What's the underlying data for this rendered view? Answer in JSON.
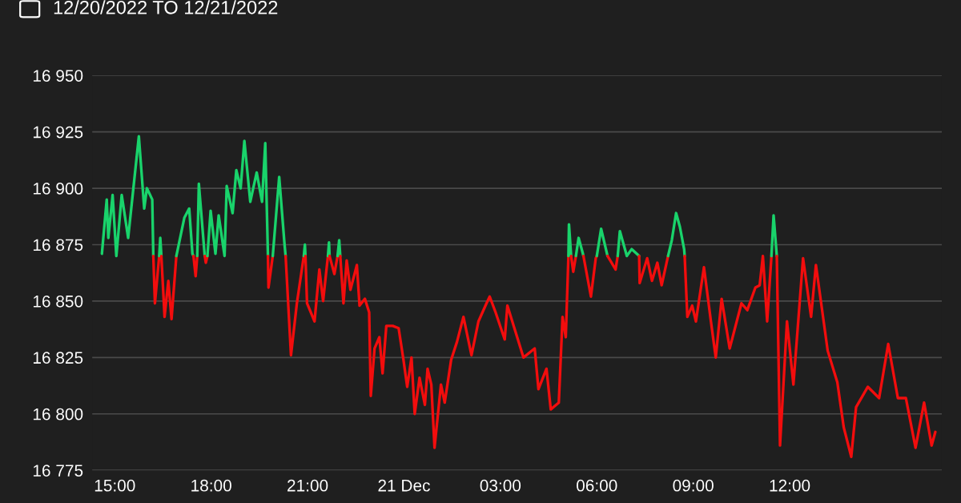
{
  "chart_data": {
    "type": "line",
    "title": "12/20/2022 TO 12/21/2022",
    "xlim": [
      "2022-12-20T14:18",
      "2022-12-21T16:44"
    ],
    "ylim": [
      16775,
      16950
    ],
    "xticks": [
      {
        "value": "2022-12-20T15:00",
        "label": "15:00"
      },
      {
        "value": "2022-12-20T18:00",
        "label": "18:00"
      },
      {
        "value": "2022-12-20T21:00",
        "label": "21:00"
      },
      {
        "value": "2022-12-21T00:00",
        "label": "21 Dec"
      },
      {
        "value": "2022-12-21T03:00",
        "label": "03:00"
      },
      {
        "value": "2022-12-21T06:00",
        "label": "06:00"
      },
      {
        "value": "2022-12-21T09:00",
        "label": "09:00"
      },
      {
        "value": "2022-12-21T12:00",
        "label": "12:00"
      }
    ],
    "yticks": [
      {
        "value": 16775,
        "label": "16 775"
      },
      {
        "value": 16800,
        "label": "16 800"
      },
      {
        "value": 16825,
        "label": "16 825"
      },
      {
        "value": 16850,
        "label": "16 850"
      },
      {
        "value": 16875,
        "label": "16 875"
      },
      {
        "value": 16900,
        "label": "16 900"
      },
      {
        "value": 16925,
        "label": "16 925"
      },
      {
        "value": 16950,
        "label": "16 950"
      }
    ],
    "grid": "y",
    "marker": "none",
    "line_style": "solid",
    "series": [
      {
        "color": "#19d36b",
        "x": [
          "2022-12-20T14:36",
          "2022-12-20T14:45",
          "2022-12-20T14:48",
          "2022-12-20T14:56",
          "2022-12-20T15:03",
          "2022-12-20T15:13",
          "2022-12-20T15:25",
          "2022-12-20T15:45",
          "2022-12-20T15:55",
          "2022-12-20T16:00",
          "2022-12-20T16:10",
          "2022-12-20T16:12"
        ],
        "values": [
          16871,
          16895,
          16878,
          16897,
          16870,
          16897,
          16878,
          16923,
          16891,
          16900,
          16895,
          16870
        ]
      },
      {
        "color": "#f20d0d",
        "x": [
          "2022-12-20T16:12",
          "2022-12-20T16:15",
          "2022-12-20T16:23"
        ],
        "values": [
          16870,
          16849,
          16870
        ]
      },
      {
        "color": "#19d36b",
        "x": [
          "2022-12-20T16:23",
          "2022-12-20T16:25",
          "2022-12-20T16:27"
        ],
        "values": [
          16870,
          16878,
          16870
        ]
      },
      {
        "color": "#f20d0d",
        "x": [
          "2022-12-20T16:27",
          "2022-12-20T16:33",
          "2022-12-20T16:40",
          "2022-12-20T16:46",
          "2022-12-20T16:55"
        ],
        "values": [
          16870,
          16843,
          16859,
          16842,
          16870
        ]
      },
      {
        "color": "#19d36b",
        "x": [
          "2022-12-20T16:55",
          "2022-12-20T17:10",
          "2022-12-20T17:19",
          "2022-12-20T17:25",
          "2022-12-20T17:27"
        ],
        "values": [
          16870,
          16887,
          16891,
          16871,
          16870
        ]
      },
      {
        "color": "#f20d0d",
        "x": [
          "2022-12-20T17:27",
          "2022-12-20T17:31",
          "2022-12-20T17:34"
        ],
        "values": [
          16870,
          16861,
          16870
        ]
      },
      {
        "color": "#19d36b",
        "x": [
          "2022-12-20T17:34",
          "2022-12-20T17:37",
          "2022-12-20T17:48"
        ],
        "values": [
          16870,
          16902,
          16870
        ]
      },
      {
        "color": "#f20d0d",
        "x": [
          "2022-12-20T17:48",
          "2022-12-20T17:50",
          "2022-12-20T17:53"
        ],
        "values": [
          16870,
          16867,
          16870
        ]
      },
      {
        "color": "#19d36b",
        "x": [
          "2022-12-20T17:53",
          "2022-12-20T17:59",
          "2022-12-20T18:08",
          "2022-12-20T18:14",
          "2022-12-20T18:25",
          "2022-12-20T18:29",
          "2022-12-20T18:40",
          "2022-12-20T18:47",
          "2022-12-20T18:55",
          "2022-12-20T19:02",
          "2022-12-20T19:13",
          "2022-12-20T19:25",
          "2022-12-20T19:35",
          "2022-12-20T19:41",
          "2022-12-20T19:46"
        ],
        "values": [
          16870,
          16890,
          16871,
          16888,
          16870,
          16901,
          16889,
          16908,
          16900,
          16921,
          16894,
          16907,
          16894,
          16920,
          16870
        ]
      },
      {
        "color": "#f20d0d",
        "x": [
          "2022-12-20T19:46",
          "2022-12-20T19:47",
          "2022-12-20T19:55"
        ],
        "values": [
          16870,
          16856,
          16870
        ]
      },
      {
        "color": "#19d36b",
        "x": [
          "2022-12-20T19:55",
          "2022-12-20T20:07",
          "2022-12-20T20:17",
          "2022-12-20T20:19"
        ],
        "values": [
          16870,
          16905,
          16875,
          16870
        ]
      },
      {
        "color": "#f20d0d",
        "x": [
          "2022-12-20T20:19",
          "2022-12-20T20:29",
          "2022-12-20T20:40",
          "2022-12-20T20:53"
        ],
        "values": [
          16870,
          16826,
          16849,
          16870
        ]
      },
      {
        "color": "#19d36b",
        "x": [
          "2022-12-20T20:53",
          "2022-12-20T20:55",
          "2022-12-20T20:56"
        ],
        "values": [
          16870,
          16875,
          16870
        ]
      },
      {
        "color": "#f20d0d",
        "x": [
          "2022-12-20T20:56",
          "2022-12-20T20:59",
          "2022-12-20T21:13",
          "2022-12-20T21:22",
          "2022-12-20T21:29",
          "2022-12-20T21:38"
        ],
        "values": [
          16870,
          16849,
          16841,
          16864,
          16850,
          16870
        ]
      },
      {
        "color": "#19d36b",
        "x": [
          "2022-12-20T21:38",
          "2022-12-20T21:40",
          "2022-12-20T21:41"
        ],
        "values": [
          16870,
          16876,
          16870
        ]
      },
      {
        "color": "#f20d0d",
        "x": [
          "2022-12-20T21:41",
          "2022-12-20T21:50",
          "2022-12-20T21:56"
        ],
        "values": [
          16870,
          16862,
          16870
        ]
      },
      {
        "color": "#19d36b",
        "x": [
          "2022-12-20T21:56",
          "2022-12-20T21:59",
          "2022-12-20T22:01"
        ],
        "values": [
          16870,
          16877,
          16870
        ]
      },
      {
        "color": "#f20d0d",
        "x": [
          "2022-12-20T22:01",
          "2022-12-20T22:07",
          "2022-12-20T22:13",
          "2022-12-20T22:20",
          "2022-12-20T22:32",
          "2022-12-20T22:37",
          "2022-12-20T22:47",
          "2022-12-20T22:55",
          "2022-12-20T22:58",
          "2022-12-20T23:05",
          "2022-12-20T23:14",
          "2022-12-20T23:20",
          "2022-12-20T23:27",
          "2022-12-20T23:39",
          "2022-12-20T23:50",
          "2022-12-20T23:59",
          "2022-12-21T00:06",
          "2022-12-21T00:14",
          "2022-12-21T00:20",
          "2022-12-21T00:29",
          "2022-12-21T00:39",
          "2022-12-21T00:44",
          "2022-12-21T00:51",
          "2022-12-21T00:57",
          "2022-12-21T01:09",
          "2022-12-21T01:16",
          "2022-12-21T01:28",
          "2022-12-21T01:39",
          "2022-12-21T01:51",
          "2022-12-21T02:06",
          "2022-12-21T02:19",
          "2022-12-21T02:34",
          "2022-12-21T02:40",
          "2022-12-21T02:51",
          "2022-12-21T03:08",
          "2022-12-21T03:13",
          "2022-12-21T03:43",
          "2022-12-21T04:04",
          "2022-12-21T04:11",
          "2022-12-21T04:26",
          "2022-12-21T04:34",
          "2022-12-21T04:49",
          "2022-12-21T04:56",
          "2022-12-21T05:02",
          "2022-12-21T05:07"
        ],
        "values": [
          16870,
          16849,
          16868,
          16855,
          16866,
          16848,
          16851,
          16845,
          16808,
          16829,
          16834,
          16818,
          16839,
          16839,
          16838,
          16824,
          16812,
          16825,
          16800,
          16816,
          16804,
          16820,
          16813,
          16785,
          16813,
          16805,
          16824,
          16832,
          16843,
          16826,
          16841,
          16849,
          16852,
          16845,
          16833,
          16848,
          16825,
          16829,
          16811,
          16820,
          16802,
          16805,
          16843,
          16834,
          16870
        ]
      },
      {
        "color": "#19d36b",
        "x": [
          "2022-12-21T05:07",
          "2022-12-21T05:08",
          "2022-12-21T05:12"
        ],
        "values": [
          16870,
          16884,
          16870
        ]
      },
      {
        "color": "#f20d0d",
        "x": [
          "2022-12-21T05:12",
          "2022-12-21T05:16",
          "2022-12-21T05:21"
        ],
        "values": [
          16870,
          16863,
          16870
        ]
      },
      {
        "color": "#19d36b",
        "x": [
          "2022-12-21T05:21",
          "2022-12-21T05:26",
          "2022-12-21T05:34",
          "2022-12-21T05:35"
        ],
        "values": [
          16870,
          16878,
          16871,
          16870
        ]
      },
      {
        "color": "#f20d0d",
        "x": [
          "2022-12-21T05:35",
          "2022-12-21T05:49",
          "2022-12-21T05:58",
          "2022-12-21T06:00"
        ],
        "values": [
          16870,
          16852,
          16869,
          16870
        ]
      },
      {
        "color": "#19d36b",
        "x": [
          "2022-12-21T06:00",
          "2022-12-21T06:08",
          "2022-12-21T06:20"
        ],
        "values": [
          16870,
          16882,
          16870
        ]
      },
      {
        "color": "#f20d0d",
        "x": [
          "2022-12-21T06:20",
          "2022-12-21T06:35",
          "2022-12-21T06:39"
        ],
        "values": [
          16870,
          16864,
          16870
        ]
      },
      {
        "color": "#19d36b",
        "x": [
          "2022-12-21T06:39",
          "2022-12-21T06:43",
          "2022-12-21T06:56",
          "2022-12-21T07:05",
          "2022-12-21T07:19"
        ],
        "values": [
          16870,
          16881,
          16870,
          16873,
          16870
        ]
      },
      {
        "color": "#f20d0d",
        "x": [
          "2022-12-21T07:19",
          "2022-12-21T07:20",
          "2022-12-21T07:34",
          "2022-12-21T07:43",
          "2022-12-21T07:53",
          "2022-12-21T08:01",
          "2022-12-21T08:13"
        ],
        "values": [
          16870,
          16858,
          16869,
          16859,
          16867,
          16857,
          16870
        ]
      },
      {
        "color": "#19d36b",
        "x": [
          "2022-12-21T08:13",
          "2022-12-21T08:20",
          "2022-12-21T08:28",
          "2022-12-21T08:35",
          "2022-12-21T08:43",
          "2022-12-21T08:44"
        ],
        "values": [
          16870,
          16877,
          16889,
          16883,
          16873,
          16870
        ]
      },
      {
        "color": "#f20d0d",
        "x": [
          "2022-12-21T08:44",
          "2022-12-21T08:49",
          "2022-12-21T08:58",
          "2022-12-21T09:05",
          "2022-12-21T09:20",
          "2022-12-21T09:33",
          "2022-12-21T09:42",
          "2022-12-21T09:53",
          "2022-12-21T10:08",
          "2022-12-21T10:30",
          "2022-12-21T10:41",
          "2022-12-21T10:56",
          "2022-12-21T11:04",
          "2022-12-21T11:10",
          "2022-12-21T11:18",
          "2022-12-21T11:26"
        ],
        "values": [
          16870,
          16843,
          16848,
          16841,
          16865,
          16841,
          16825,
          16851,
          16829,
          16849,
          16846,
          16856,
          16857,
          16870,
          16841,
          16870
        ]
      },
      {
        "color": "#19d36b",
        "x": [
          "2022-12-21T11:26",
          "2022-12-21T11:30",
          "2022-12-21T11:36"
        ],
        "values": [
          16870,
          16888,
          16870
        ]
      },
      {
        "color": "#f20d0d",
        "x": [
          "2022-12-21T11:36",
          "2022-12-21T11:42",
          "2022-12-21T11:55",
          "2022-12-21T12:07",
          "2022-12-21T12:25",
          "2022-12-21T12:40",
          "2022-12-21T12:49",
          "2022-12-21T13:11",
          "2022-12-21T13:29",
          "2022-12-21T13:41",
          "2022-12-21T13:55",
          "2022-12-21T14:04",
          "2022-12-21T14:26",
          "2022-12-21T14:47",
          "2022-12-21T15:04",
          "2022-12-21T15:22",
          "2022-12-21T15:37",
          "2022-12-21T15:55",
          "2022-12-21T16:11",
          "2022-12-21T16:25",
          "2022-12-21T16:32"
        ],
        "values": [
          16870,
          16786,
          16841,
          16813,
          16869,
          16843,
          16866,
          16828,
          16814,
          16794,
          16781,
          16803,
          16812,
          16807,
          16831,
          16807,
          16807,
          16785,
          16805,
          16786,
          16792
        ]
      }
    ]
  }
}
